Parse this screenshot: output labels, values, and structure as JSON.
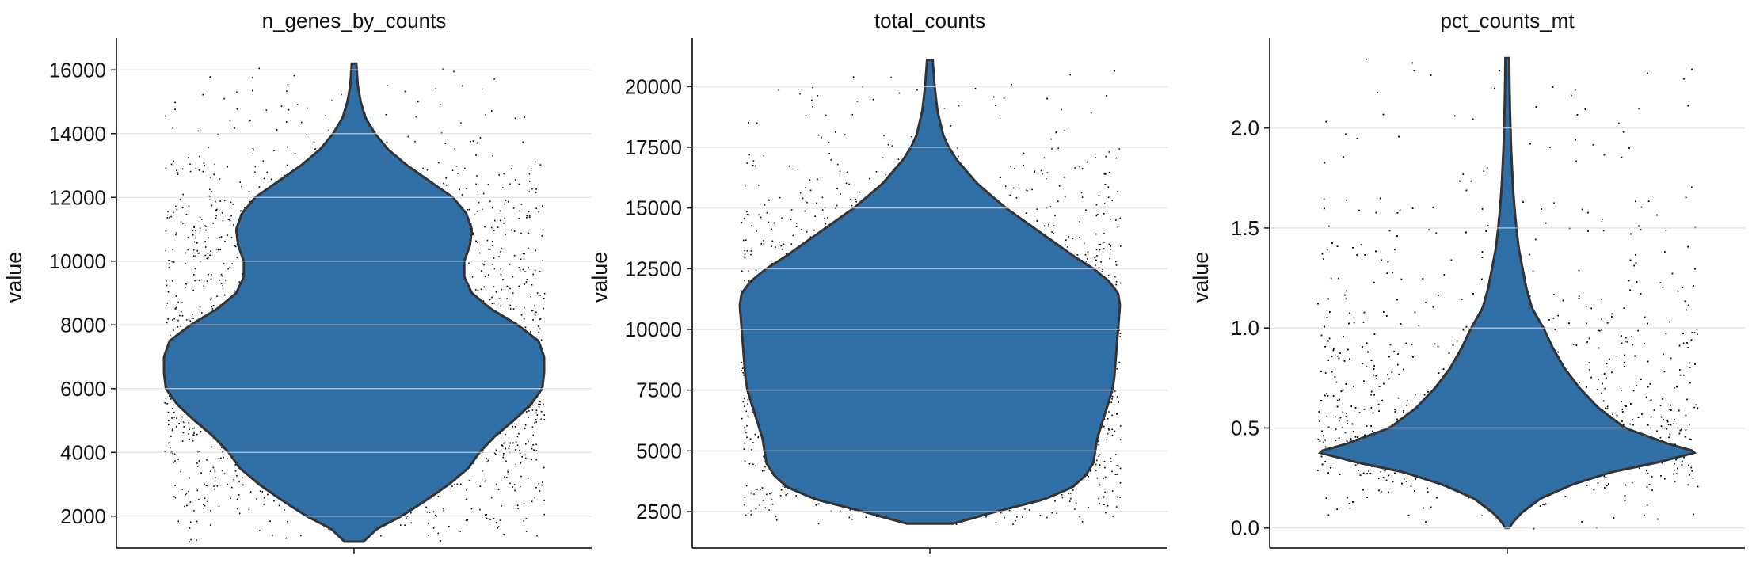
{
  "chart_data": [
    {
      "type": "violin",
      "title": "n_genes_by_counts",
      "ylabel": "value",
      "ylim": [
        1000,
        17000
      ],
      "yticks": [
        2000,
        4000,
        6000,
        8000,
        10000,
        12000,
        14000,
        16000
      ],
      "grid": true,
      "n_points": 2600,
      "color": "#2f6fa5",
      "data_range": [
        1200,
        16200
      ],
      "density": [
        [
          1200,
          0.05
        ],
        [
          1600,
          0.12
        ],
        [
          2000,
          0.25
        ],
        [
          2500,
          0.38
        ],
        [
          3000,
          0.5
        ],
        [
          3500,
          0.6
        ],
        [
          4000,
          0.66
        ],
        [
          4500,
          0.74
        ],
        [
          5000,
          0.84
        ],
        [
          5500,
          0.93
        ],
        [
          6000,
          0.99
        ],
        [
          6500,
          1.0
        ],
        [
          7000,
          1.0
        ],
        [
          7500,
          0.97
        ],
        [
          8000,
          0.86
        ],
        [
          8500,
          0.72
        ],
        [
          9000,
          0.62
        ],
        [
          9500,
          0.58
        ],
        [
          10000,
          0.58
        ],
        [
          10500,
          0.61
        ],
        [
          11000,
          0.62
        ],
        [
          11500,
          0.59
        ],
        [
          12000,
          0.52
        ],
        [
          12500,
          0.4
        ],
        [
          13000,
          0.28
        ],
        [
          13500,
          0.18
        ],
        [
          14000,
          0.11
        ],
        [
          14500,
          0.06
        ],
        [
          15000,
          0.035
        ],
        [
          15500,
          0.02
        ],
        [
          16200,
          0.012
        ]
      ]
    },
    {
      "type": "violin",
      "title": "total_counts",
      "ylabel": "value",
      "ylim": [
        1000,
        22000
      ],
      "yticks": [
        2500,
        5000,
        7500,
        10000,
        12500,
        15000,
        17500,
        20000
      ],
      "grid": true,
      "n_points": 2600,
      "color": "#2f6fa5",
      "data_range": [
        2000,
        21100
      ],
      "density": [
        [
          2000,
          0.12
        ],
        [
          2500,
          0.35
        ],
        [
          3000,
          0.6
        ],
        [
          3500,
          0.75
        ],
        [
          4000,
          0.82
        ],
        [
          4500,
          0.86
        ],
        [
          5000,
          0.87
        ],
        [
          5500,
          0.88
        ],
        [
          6000,
          0.9
        ],
        [
          6500,
          0.92
        ],
        [
          7000,
          0.94
        ],
        [
          7500,
          0.96
        ],
        [
          8000,
          0.97
        ],
        [
          9000,
          0.98
        ],
        [
          10000,
          0.99
        ],
        [
          11000,
          1.0
        ],
        [
          11500,
          0.99
        ],
        [
          12000,
          0.94
        ],
        [
          12500,
          0.86
        ],
        [
          13000,
          0.76
        ],
        [
          14000,
          0.58
        ],
        [
          15000,
          0.4
        ],
        [
          16000,
          0.25
        ],
        [
          17000,
          0.14
        ],
        [
          17500,
          0.1
        ],
        [
          18000,
          0.07
        ],
        [
          19000,
          0.04
        ],
        [
          20000,
          0.025
        ],
        [
          21100,
          0.015
        ]
      ]
    },
    {
      "type": "violin",
      "title": "pct_counts_mt",
      "ylabel": "value",
      "ylim": [
        -0.1,
        2.45
      ],
      "yticks": [
        0.0,
        0.5,
        1.0,
        1.5,
        2.0
      ],
      "ytick_labels": [
        "0.0",
        "0.5",
        "1.0",
        "1.5",
        "2.0"
      ],
      "grid": true,
      "n_points": 2600,
      "color": "#2f6fa5",
      "data_range": [
        0.0,
        2.35
      ],
      "density": [
        [
          0.0,
          0.01
        ],
        [
          0.03,
          0.03
        ],
        [
          0.08,
          0.08
        ],
        [
          0.15,
          0.18
        ],
        [
          0.22,
          0.35
        ],
        [
          0.28,
          0.55
        ],
        [
          0.33,
          0.8
        ],
        [
          0.38,
          1.0
        ],
        [
          0.42,
          0.85
        ],
        [
          0.5,
          0.62
        ],
        [
          0.6,
          0.48
        ],
        [
          0.7,
          0.38
        ],
        [
          0.8,
          0.3
        ],
        [
          0.9,
          0.24
        ],
        [
          1.0,
          0.19
        ],
        [
          1.1,
          0.13
        ],
        [
          1.2,
          0.1
        ],
        [
          1.3,
          0.08
        ],
        [
          1.4,
          0.06
        ],
        [
          1.5,
          0.048
        ],
        [
          1.6,
          0.038
        ],
        [
          1.7,
          0.03
        ],
        [
          1.8,
          0.025
        ],
        [
          1.9,
          0.02
        ],
        [
          2.0,
          0.017
        ],
        [
          2.1,
          0.014
        ],
        [
          2.2,
          0.012
        ],
        [
          2.35,
          0.01
        ]
      ]
    }
  ]
}
